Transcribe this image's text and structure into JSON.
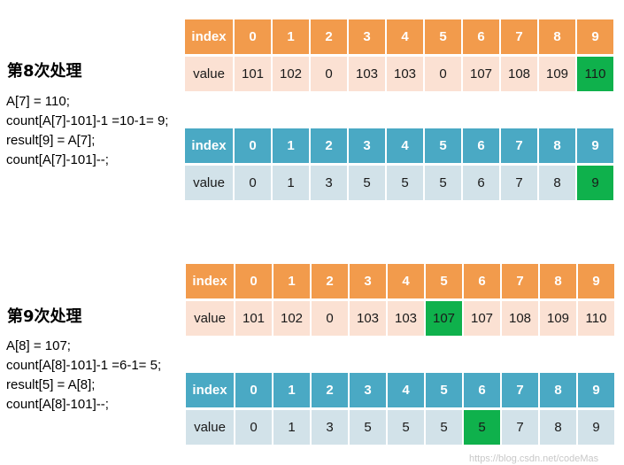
{
  "steps": [
    {
      "title": "第8次处理",
      "code": [
        "A[7] = 110;",
        "count[A[7]-101]-1 =10-1= 9;",
        "result[9] = A[7];",
        "count[A[7]-101]--;"
      ],
      "array_a": {
        "header_label": "index",
        "value_label": "value",
        "indices": [
          "0",
          "1",
          "2",
          "3",
          "4",
          "5",
          "6",
          "7",
          "8",
          "9"
        ],
        "values": [
          "101",
          "102",
          "0",
          "103",
          "103",
          "0",
          "107",
          "108",
          "109",
          "110"
        ],
        "highlight_index": 9
      },
      "array_b": {
        "header_label": "index",
        "value_label": "value",
        "indices": [
          "0",
          "1",
          "2",
          "3",
          "4",
          "5",
          "6",
          "7",
          "8",
          "9"
        ],
        "values": [
          "0",
          "1",
          "3",
          "5",
          "5",
          "5",
          "6",
          "7",
          "8",
          "9"
        ],
        "highlight_index": 9
      }
    },
    {
      "title": "第9次处理",
      "code": [
        "A[8] = 107;",
        "count[A[8]-101]-1 =6-1= 5;",
        "result[5] = A[8];",
        "count[A[8]-101]--;"
      ],
      "array_a": {
        "header_label": "index",
        "value_label": "value",
        "indices": [
          "0",
          "1",
          "2",
          "3",
          "4",
          "5",
          "6",
          "7",
          "8",
          "9"
        ],
        "values": [
          "101",
          "102",
          "0",
          "103",
          "103",
          "107",
          "107",
          "108",
          "109",
          "110"
        ],
        "highlight_index": 5
      },
      "array_b": {
        "header_label": "index",
        "value_label": "value",
        "indices": [
          "0",
          "1",
          "2",
          "3",
          "4",
          "5",
          "6",
          "7",
          "8",
          "9"
        ],
        "values": [
          "0",
          "1",
          "3",
          "5",
          "5",
          "5",
          "5",
          "7",
          "8",
          "9"
        ],
        "highlight_index": 6
      }
    }
  ],
  "colors": {
    "orange_header": "#f29b4c",
    "orange_value": "#fbe1d3",
    "blue_header": "#4aa9c4",
    "blue_value": "#d2e2e9",
    "highlight": "#0fb14c"
  },
  "watermark": "https://blog.csdn.net/codeMas"
}
